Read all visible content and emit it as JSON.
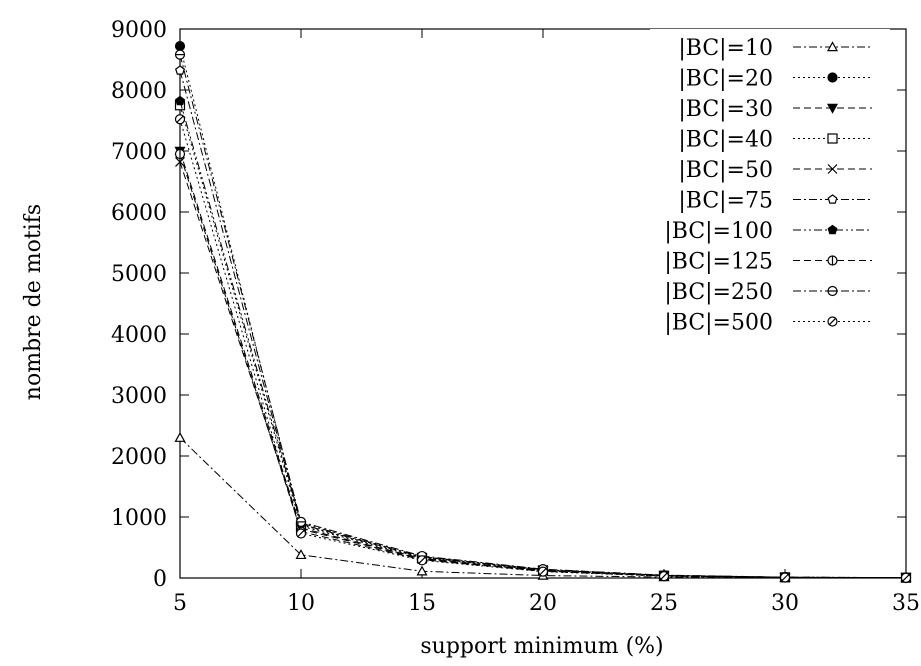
{
  "chart_data": {
    "type": "line",
    "title": "",
    "xlabel": "support minimum (%)",
    "ylabel": "nombre de motifs",
    "xlim": [
      5,
      35
    ],
    "ylim": [
      0,
      9000
    ],
    "x_ticks": [
      "5",
      "10",
      "15",
      "20",
      "25",
      "30",
      "35"
    ],
    "y_ticks": [
      "0",
      "1000",
      "2000",
      "3000",
      "4000",
      "5000",
      "6000",
      "7000",
      "8000",
      "9000"
    ],
    "grid": false,
    "legend_position": "top-right",
    "x": [
      5,
      10,
      15,
      20,
      25,
      30,
      35
    ],
    "series": [
      {
        "name": "|BC|=10",
        "marker": "triangle-open",
        "dash": "dash-dot",
        "values": [
          2300,
          380,
          110,
          40,
          15,
          5,
          3
        ]
      },
      {
        "name": "|BC|=20",
        "marker": "circle-filled",
        "dash": "dotted",
        "values": [
          8720,
          870,
          340,
          130,
          40,
          12,
          5
        ]
      },
      {
        "name": "|BC|=30",
        "marker": "triangle-down-filled",
        "dash": "dashed",
        "values": [
          7000,
          820,
          320,
          120,
          35,
          10,
          4
        ]
      },
      {
        "name": "|BC|=40",
        "marker": "square-open",
        "dash": "dotted",
        "values": [
          7750,
          850,
          330,
          125,
          38,
          11,
          5
        ]
      },
      {
        "name": "|BC|=50",
        "marker": "x",
        "dash": "dashed",
        "values": [
          6820,
          800,
          310,
          115,
          35,
          10,
          4
        ]
      },
      {
        "name": "|BC|=75",
        "marker": "pentagon-open",
        "dash": "dash-dot",
        "values": [
          8320,
          880,
          345,
          135,
          42,
          12,
          5
        ]
      },
      {
        "name": "|BC|=100",
        "marker": "pentagon-filled",
        "dash": "dash-dot-dot",
        "values": [
          7820,
          900,
          350,
          140,
          45,
          13,
          6
        ]
      },
      {
        "name": "|BC|=125",
        "marker": "circle-half-v",
        "dash": "dashed",
        "values": [
          6950,
          760,
          300,
          110,
          33,
          9,
          4
        ]
      },
      {
        "name": "|BC|=250",
        "marker": "circle-half-h",
        "dash": "dash-dot",
        "values": [
          8580,
          920,
          360,
          145,
          46,
          14,
          6
        ]
      },
      {
        "name": "|BC|=500",
        "marker": "circle-half-d",
        "dash": "dotted",
        "values": [
          7520,
          730,
          290,
          105,
          30,
          8,
          3
        ]
      }
    ]
  }
}
